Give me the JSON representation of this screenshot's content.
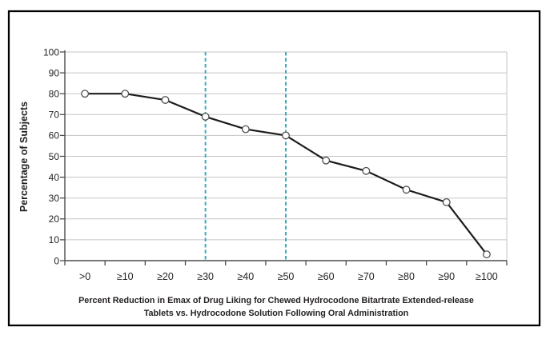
{
  "figure": {
    "background": "#ffffff",
    "border_color": "#000000"
  },
  "chart_data": {
    "type": "line",
    "title": "",
    "categories": [
      ">0",
      "≥10",
      "≥20",
      "≥30",
      "≥40",
      "≥50",
      "≥60",
      "≥70",
      "≥80",
      "≥90",
      "≥100"
    ],
    "values": [
      80,
      80,
      77,
      69,
      63,
      60,
      48,
      43,
      34,
      28,
      3
    ],
    "ylabel": "Percentage of Subjects",
    "xlabel_line1": "Percent Reduction in Emax of Drug Liking for Chewed Hydrocodone Bitartrate Extended-release",
    "xlabel_line2": "Tablets vs. Hydrocodone Solution Following Oral Administration",
    "ylim": [
      0,
      100
    ],
    "yticks": [
      0,
      10,
      20,
      30,
      40,
      50,
      60,
      70,
      80,
      90,
      100
    ],
    "grid": true,
    "legend": "none",
    "reference_lines": [
      {
        "category": "≥30",
        "style": "dashed",
        "color": "#3fa9bd"
      },
      {
        "category": "≥50",
        "style": "dashed",
        "color": "#3fa9bd"
      }
    ],
    "colors": {
      "series_line": "#1c1c1c",
      "marker_fill": "#ffffff",
      "marker_stroke": "#4f4f4f",
      "gridline": "#c5c5c5",
      "axis": "#4d4d4d",
      "text": "#231f20",
      "reference": "#3fa9bd"
    }
  }
}
